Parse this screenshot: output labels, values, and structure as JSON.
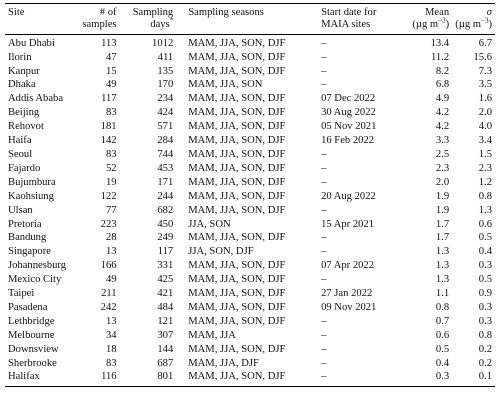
{
  "header": {
    "site": "Site",
    "samples_l1": "# of",
    "samples_l2": "samples",
    "days_l1": "Sampling",
    "days_l2": "days",
    "days_mark": "*",
    "seasons": "Sampling seasons",
    "start_l1": "Start date for",
    "start_l2": "MAIA sites",
    "mean_l1": "Mean",
    "mean_l2_open": "(µg m",
    "mean_exp": "−3",
    "mean_l2_close": ")",
    "sigma_l1": "σ",
    "sigma_l2_open": "(µg m",
    "sigma_exp": "−3",
    "sigma_l2_close": ")"
  },
  "rows": [
    {
      "site": "Abu Dhabi",
      "samples": "113",
      "days": "1012",
      "seasons": "MAM, JJA, SON, DJF",
      "start": "–",
      "mean": "13.4",
      "sigma": "6.7"
    },
    {
      "site": "Ilorin",
      "samples": "47",
      "days": "411",
      "seasons": "MAM, JJA, SON, DJF",
      "start": "–",
      "mean": "11.2",
      "sigma": "15.6"
    },
    {
      "site": "Kanpur",
      "samples": "15",
      "days": "135",
      "seasons": "MAM, JJA, SON, DJF",
      "start": "–",
      "mean": "8.2",
      "sigma": "7.3"
    },
    {
      "site": "Dhaka",
      "samples": "49",
      "days": "170",
      "seasons": "MAM, JJA, SON",
      "start": "–",
      "mean": "6.8",
      "sigma": "3.5"
    },
    {
      "site": "Addis Ababa",
      "samples": "117",
      "days": "234",
      "seasons": "MAM, JJA, SON, DJF",
      "start": "07 Dec 2022",
      "mean": "4.9",
      "sigma": "1.6"
    },
    {
      "site": "Beijing",
      "samples": "83",
      "days": "424",
      "seasons": "MAM, JJA, SON, DJF",
      "start": "30 Aug 2022",
      "mean": "4.2",
      "sigma": "2.0"
    },
    {
      "site": "Rehovot",
      "samples": "181",
      "days": "571",
      "seasons": "MAM, JJA, SON, DJF",
      "start": "05 Nov 2021",
      "mean": "4.2",
      "sigma": "4.0"
    },
    {
      "site": "Haifa",
      "samples": "142",
      "days": "284",
      "seasons": "MAM, JJA, SON, DJF",
      "start": "16 Feb 2022",
      "mean": "3.3",
      "sigma": "3.4"
    },
    {
      "site": "Seoul",
      "samples": "83",
      "days": "744",
      "seasons": "MAM, JJA, SON, DJF",
      "start": "–",
      "mean": "2.5",
      "sigma": "1.5"
    },
    {
      "site": "Fajardo",
      "samples": "52",
      "days": "453",
      "seasons": "MAM, JJA, SON, DJF",
      "start": "–",
      "mean": "2.3",
      "sigma": "2.3"
    },
    {
      "site": "Bujumbura",
      "samples": "19",
      "days": "171",
      "seasons": "MAM, JJA, SON, DJF",
      "start": "–",
      "mean": "2.0",
      "sigma": "1.2"
    },
    {
      "site": "Kaohsiung",
      "samples": "122",
      "days": "244",
      "seasons": "MAM, JJA, SON, DJF",
      "start": "20 Aug 2022",
      "mean": "1.9",
      "sigma": "0.8"
    },
    {
      "site": "Ulsan",
      "samples": "77",
      "days": "682",
      "seasons": "MAM, JJA, SON, DJF",
      "start": "–",
      "mean": "1.9",
      "sigma": "1.3"
    },
    {
      "site": "Pretoria",
      "samples": "223",
      "days": "450",
      "seasons": "JJA, SON",
      "start": "15 Apr 2021",
      "mean": "1.7",
      "sigma": "0.6"
    },
    {
      "site": "Bandung",
      "samples": "28",
      "days": "249",
      "seasons": "MAM, JJA, SON, DJF",
      "start": "–",
      "mean": "1.7",
      "sigma": "0.5"
    },
    {
      "site": "Singapore",
      "samples": "13",
      "days": "117",
      "seasons": "JJA, SON, DJF",
      "start": "–",
      "mean": "1.3",
      "sigma": "0.4"
    },
    {
      "site": "Johannesburg",
      "samples": "166",
      "days": "331",
      "seasons": "MAM, JJA, SON, DJF",
      "start": "07 Apr 2022",
      "mean": "1.3",
      "sigma": "0.3"
    },
    {
      "site": "Mexico City",
      "samples": "49",
      "days": "425",
      "seasons": "MAM, JJA, SON, DJF",
      "start": "–",
      "mean": "1.3",
      "sigma": "0.5"
    },
    {
      "site": "Taipei",
      "samples": "211",
      "days": "421",
      "seasons": "MAM, JJA, SON, DJF",
      "start": "27 Jan 2022",
      "mean": "1.1",
      "sigma": "0.9"
    },
    {
      "site": "Pasadena",
      "samples": "242",
      "days": "484",
      "seasons": "MAM, JJA, SON, DJF",
      "start": "09 Nov 2021",
      "mean": "0.8",
      "sigma": "0.3"
    },
    {
      "site": "Lethbridge",
      "samples": "13",
      "days": "121",
      "seasons": "MAM, JJA, SON, DJF",
      "start": "–",
      "mean": "0.7",
      "sigma": "0.3"
    },
    {
      "site": "Melbourne",
      "samples": "34",
      "days": "307",
      "seasons": "MAM, JJA",
      "start": "–",
      "mean": "0.6",
      "sigma": "0.8"
    },
    {
      "site": "Downsview",
      "samples": "18",
      "days": "144",
      "seasons": "MAM, JJA, SON, DJF",
      "start": "–",
      "mean": "0.5",
      "sigma": "0.2"
    },
    {
      "site": "Sherbrooke",
      "samples": "83",
      "days": "687",
      "seasons": "MAM, JJA, DJF",
      "start": "–",
      "mean": "0.4",
      "sigma": "0.2"
    },
    {
      "site": "Halifax",
      "samples": "116",
      "days": "801",
      "seasons": "MAM, JJA, SON, DJF",
      "start": "–",
      "mean": "0.3",
      "sigma": "0.1"
    }
  ]
}
